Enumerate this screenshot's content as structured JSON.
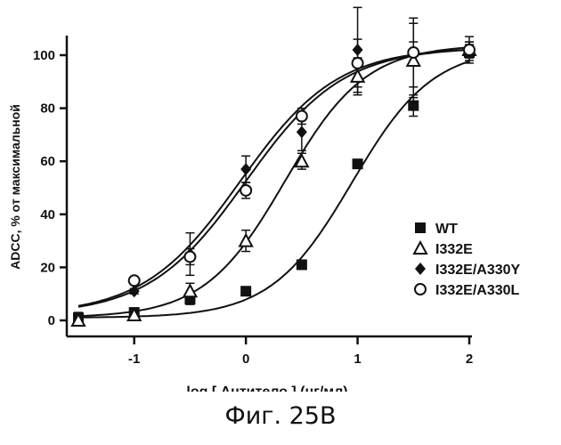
{
  "caption": "Фиг. 25В",
  "chart_data": {
    "type": "scatter",
    "xlabel": "log [ Антитело ] (нг/мл)",
    "ylabel": "ADCC, % от максимальной",
    "xlim": [
      -1.5,
      2
    ],
    "ylim": [
      0,
      105
    ],
    "x_ticks": [
      -1,
      0,
      1,
      2
    ],
    "y_ticks": [
      0,
      20,
      40,
      60,
      80,
      100
    ],
    "x_tick_labels": [
      "-1",
      "0",
      "1",
      "2"
    ],
    "y_tick_labels": [
      "0",
      "20",
      "40",
      "60",
      "80",
      "100"
    ],
    "grid": false,
    "legend_position": "center-right",
    "fit_curves": "sigmoidal dose-response",
    "series": [
      {
        "name": "WT",
        "marker": "filled-square",
        "points": [
          {
            "x": -1.5,
            "y": 1,
            "err": 2
          },
          {
            "x": -1.0,
            "y": 3,
            "err": 1
          },
          {
            "x": -0.5,
            "y": 8,
            "err": 2
          },
          {
            "x": 0.0,
            "y": 11,
            "err": 1
          },
          {
            "x": 0.5,
            "y": 21,
            "err": 0
          },
          {
            "x": 1.0,
            "y": 59,
            "err": 1
          },
          {
            "x": 1.5,
            "y": 81,
            "err": 4
          },
          {
            "x": 2.0,
            "y": 101,
            "err": 3
          }
        ],
        "fit": {
          "bottom": 1,
          "top": 103,
          "logEC50": 0.95,
          "hill": 1.2
        }
      },
      {
        "name": "I332E",
        "marker": "open-triangle",
        "points": [
          {
            "x": -1.5,
            "y": 0,
            "err": 2
          },
          {
            "x": -1.0,
            "y": 2,
            "err": 1
          },
          {
            "x": -0.5,
            "y": 11,
            "err": 3
          },
          {
            "x": 0.0,
            "y": 30,
            "err": 4
          },
          {
            "x": 0.5,
            "y": 60,
            "err": 3
          },
          {
            "x": 1.0,
            "y": 92,
            "err": 7
          },
          {
            "x": 1.5,
            "y": 98,
            "err": 14
          },
          {
            "x": 2.0,
            "y": 102,
            "err": 5
          }
        ],
        "fit": {
          "bottom": 1,
          "top": 104,
          "logEC50": 0.35,
          "hill": 1.2
        }
      },
      {
        "name": "I332E/A330Y",
        "marker": "filled-diamond",
        "points": [
          {
            "x": -1.0,
            "y": 11,
            "err": 1
          },
          {
            "x": -0.5,
            "y": 25,
            "err": 8
          },
          {
            "x": 0.0,
            "y": 57,
            "err": 5
          },
          {
            "x": 0.5,
            "y": 71,
            "err": 7
          },
          {
            "x": 1.0,
            "y": 102,
            "err": 16
          },
          {
            "x": 1.5,
            "y": 101,
            "err": 4
          },
          {
            "x": 2.0,
            "y": 102,
            "err": 3
          }
        ],
        "fit": {
          "bottom": 2,
          "top": 103,
          "logEC50": -0.05,
          "hill": 1.0
        }
      },
      {
        "name": "I332E/A330L",
        "marker": "open-circle",
        "points": [
          {
            "x": -1.0,
            "y": 15,
            "err": 0
          },
          {
            "x": -0.5,
            "y": 24,
            "err": 3
          },
          {
            "x": 0.0,
            "y": 49,
            "err": 3
          },
          {
            "x": 0.5,
            "y": 77,
            "err": 3
          },
          {
            "x": 1.0,
            "y": 97,
            "err": 9
          },
          {
            "x": 1.5,
            "y": 101,
            "err": 13
          },
          {
            "x": 2.0,
            "y": 102,
            "err": 3
          }
        ],
        "fit": {
          "bottom": 2,
          "top": 103,
          "logEC50": 0.0,
          "hill": 1.0
        }
      }
    ]
  }
}
